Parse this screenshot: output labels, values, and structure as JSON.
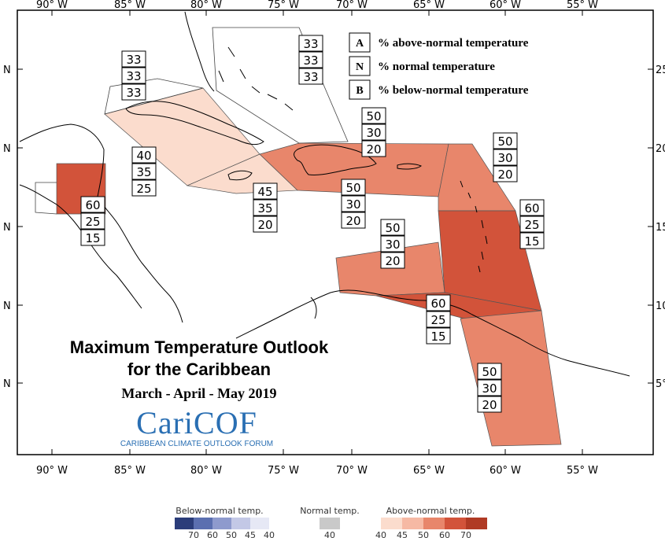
{
  "map": {
    "title_line1": "Maximum Temperature Outlook",
    "title_line2": "for the Caribbean",
    "period": "March - April - May 2019",
    "logo_text": "CariCOF",
    "logo_subtitle": "CARIBBEAN CLIMATE OUTLOOK FORUM",
    "lon_labels": [
      "90° W",
      "85° W",
      "80° W",
      "75° W",
      "70° W",
      "65° W",
      "60° W",
      "55° W"
    ],
    "lat_labels_left": [
      "N",
      "N",
      "N",
      "N",
      "N"
    ],
    "lat_labels_right": [
      "25",
      "20",
      "15",
      "10",
      "5°"
    ]
  },
  "key": {
    "items": [
      {
        "letter": "A",
        "text": "% above-normal temperature"
      },
      {
        "letter": "N",
        "text": "% normal temperature"
      },
      {
        "letter": "B",
        "text": "% below-normal temperature"
      }
    ]
  },
  "forecasts": [
    {
      "region": "bahamas",
      "A": "33",
      "N": "33",
      "B": "33"
    },
    {
      "region": "cayman",
      "A": "33",
      "N": "33",
      "B": "33"
    },
    {
      "region": "cuba",
      "A": "40",
      "N": "35",
      "B": "25"
    },
    {
      "region": "jamaica",
      "A": "45",
      "N": "35",
      "B": "20"
    },
    {
      "region": "belize",
      "A": "60",
      "N": "25",
      "B": "15"
    },
    {
      "region": "hispaniola-north",
      "A": "50",
      "N": "30",
      "B": "20"
    },
    {
      "region": "hispaniola-south",
      "A": "50",
      "N": "30",
      "B": "20"
    },
    {
      "region": "leeward-islands",
      "A": "50",
      "N": "30",
      "B": "20"
    },
    {
      "region": "windward-islands",
      "A": "60",
      "N": "25",
      "B": "15"
    },
    {
      "region": "abc-islands",
      "A": "50",
      "N": "30",
      "B": "20"
    },
    {
      "region": "trinidad",
      "A": "60",
      "N": "25",
      "B": "15"
    },
    {
      "region": "guianas",
      "A": "50",
      "N": "30",
      "B": "20"
    }
  ],
  "colors": {
    "above_35_45": "#fbdccd",
    "above_45_50": "#f6b9a4",
    "above_50_60": "#e8866b",
    "above_60_70": "#d2533a",
    "above_70": "#b03a24",
    "below_70": "#2b3d7a",
    "below_60": "#5b6fb0",
    "below_50": "#8e9acd",
    "below_45": "#c3c8e6",
    "below_40": "#e6e8f5",
    "normal": "#c9c9c9",
    "logo": "#2a6fb3"
  },
  "scale": {
    "below_title": "Below-normal temp.",
    "normal_title": "Normal temp.",
    "above_title": "Above-normal temp.",
    "below_ticks": [
      "70",
      "60",
      "50",
      "45",
      "40"
    ],
    "normal_ticks": [
      "40"
    ],
    "above_ticks": [
      "40",
      "45",
      "50",
      "60",
      "70"
    ]
  }
}
